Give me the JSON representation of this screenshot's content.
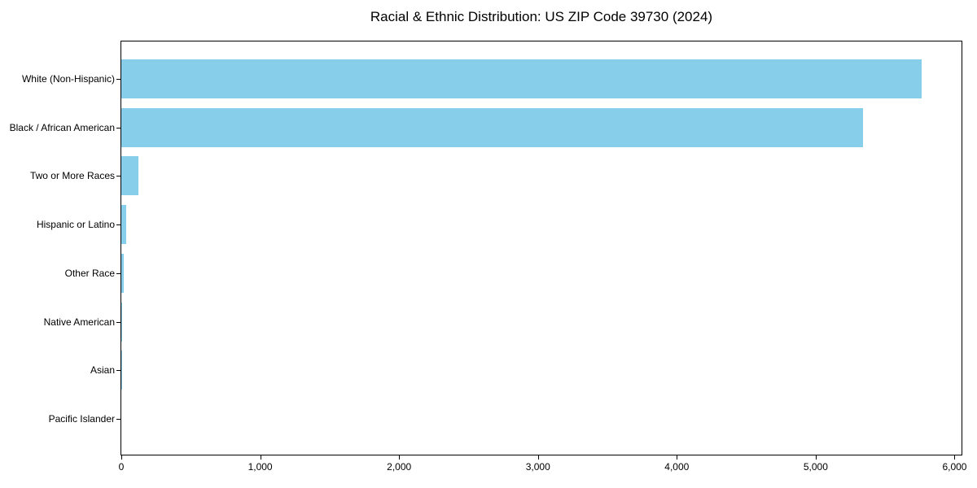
{
  "title": "Racial & Ethnic Distribution: US ZIP Code 39730 (2024)",
  "chart_data": {
    "type": "bar",
    "orientation": "horizontal",
    "title": "Racial & Ethnic Distribution: US ZIP Code 39730 (2024)",
    "xlabel": "",
    "ylabel": "",
    "categories": [
      "White (Non-Hispanic)",
      "Black / African American",
      "Two or More Races",
      "Hispanic or Latino",
      "Other Race",
      "Native American",
      "Asian",
      "Pacific Islander"
    ],
    "values": [
      5760,
      5340,
      125,
      35,
      15,
      5,
      2,
      0
    ],
    "xlim": [
      0,
      6050
    ],
    "x_ticks": [
      0,
      1000,
      2000,
      3000,
      4000,
      5000,
      6000
    ],
    "x_tick_labels": [
      "0",
      "1,000",
      "2,000",
      "3,000",
      "4,000",
      "5,000",
      "6,000"
    ],
    "bar_color": "#87CEEB",
    "text_color": "#000000",
    "grid": false,
    "legend": false
  }
}
